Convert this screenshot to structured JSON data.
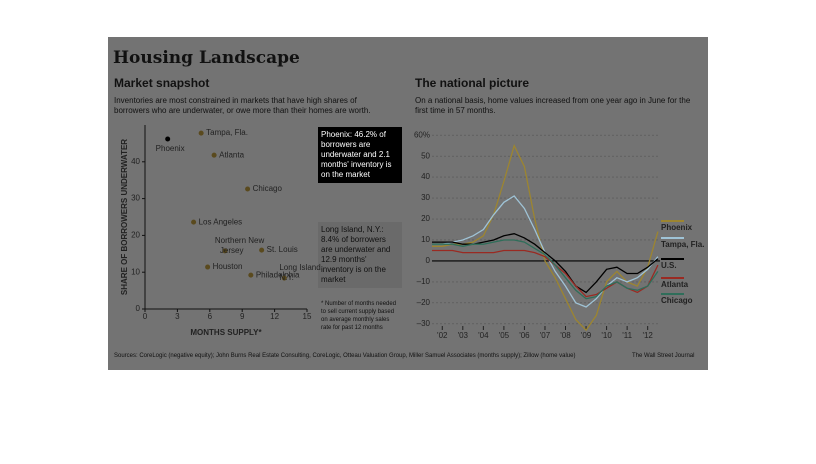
{
  "header": {
    "title": "Housing Landscape",
    "source": "Sources: CoreLogic (negative equity); John Burns Real Estate Consulting, CoreLogic, Otteau Valuation Group, Miller Samuel Associates (months supply); Zillow (home value)",
    "credit": "The Wall Street Journal"
  },
  "chart_data": [
    {
      "type": "scatter",
      "title": "Market snapshot",
      "subtitle": "Inventories are most constrained in markets that have high shares of borrowers who are underwater, or owe more than their homes are worth.",
      "x_label": "MONTHS SUPPLY*",
      "y_label": "SHARE OF BORROWERS UNDERWATER",
      "points": [
        {
          "label": "Phoenix",
          "x": 2.1,
          "y": 46.2
        },
        {
          "label": "Tampa, Fla.",
          "x": 5.2,
          "y": 47.8
        },
        {
          "label": "Atlanta",
          "x": 6.4,
          "y": 41.8
        },
        {
          "label": "Chicago",
          "x": 9.5,
          "y": 32.6
        },
        {
          "label": "Los Angeles",
          "x": 4.5,
          "y": 23.6
        },
        {
          "label": "Northern New Jersey",
          "x": 7.4,
          "y": 15.8
        },
        {
          "label": "St. Louis",
          "x": 10.8,
          "y": 16
        },
        {
          "label": "Houston",
          "x": 5.8,
          "y": 11.4
        },
        {
          "label": "Philadelphia",
          "x": 9.8,
          "y": 9.2
        },
        {
          "label": "Long Island, N.Y.",
          "x": 12.9,
          "y": 8.4
        }
      ],
      "color": "#5a4a1e",
      "highlight_color": "#000000",
      "xlim": [
        0,
        15
      ],
      "xticks": [
        0,
        3,
        6,
        9,
        12,
        15
      ],
      "ylim": [
        0,
        50
      ],
      "yticks": [
        0,
        10,
        20,
        30,
        40
      ],
      "annotations": [
        "Phoenix: 46.2% of borrowers are underwater and 2.1 months' inventory is on the market",
        "Long Island, N.Y.: 8.4% of borrowers are underwater and 12.9 months' inventory is on the market",
        "* Number of months needed to sell current supply based on average monthly sales rate for past 12 months"
      ]
    },
    {
      "type": "line",
      "title": "The national picture",
      "subtitle": "On a national basis, home values increased from one year ago in June for the first time in 57 months.",
      "x": [
        2001.5,
        2002,
        2002.5,
        2003,
        2003.5,
        2004,
        2004.5,
        2005,
        2005.5,
        2006,
        2006.5,
        2007,
        2007.5,
        2008,
        2008.5,
        2009,
        2009.5,
        2010,
        2010.5,
        2011,
        2011.5,
        2012,
        2012.5
      ],
      "series": [
        {
          "name": "Phoenix",
          "color": "#9c8530",
          "values": [
            7,
            7,
            8,
            8,
            9,
            12,
            22,
            38,
            55,
            45,
            20,
            0,
            -8,
            -18,
            -28,
            -33,
            -26,
            -10,
            -5,
            -10,
            -12,
            -3,
            14
          ]
        },
        {
          "name": "Tampa, Fla.",
          "color": "#9fc3d6",
          "values": [
            8,
            8,
            9,
            10,
            12,
            15,
            22,
            28,
            31,
            25,
            15,
            4,
            -5,
            -12,
            -20,
            -22,
            -18,
            -12,
            -8,
            -10,
            -8,
            -4,
            2
          ]
        },
        {
          "name": "U.S.",
          "color": "#000000",
          "values": [
            9,
            9,
            9,
            8,
            8,
            9,
            10,
            12,
            13,
            11,
            8,
            4,
            0,
            -5,
            -12,
            -15,
            -10,
            -4,
            -3,
            -6,
            -6,
            -3,
            1
          ]
        },
        {
          "name": "Atlanta",
          "color": "#9a2a22",
          "values": [
            5,
            5,
            5,
            4,
            4,
            4,
            4,
            5,
            5,
            5,
            4,
            2,
            -2,
            -6,
            -12,
            -17,
            -16,
            -13,
            -10,
            -13,
            -15,
            -12,
            -2
          ]
        },
        {
          "name": "Chicago",
          "color": "#2f6e5a",
          "values": [
            8,
            8,
            8,
            7,
            8,
            8,
            9,
            10,
            10,
            9,
            6,
            3,
            -2,
            -8,
            -14,
            -18,
            -17,
            -12,
            -10,
            -13,
            -14,
            -12,
            -5
          ]
        }
      ],
      "xlim": [
        2001.5,
        2012.6
      ],
      "xticks": [
        {
          "value": 2002,
          "label": "'02"
        },
        {
          "value": 2003,
          "label": "'03"
        },
        {
          "value": 2004,
          "label": "'04"
        },
        {
          "value": 2005,
          "label": "'05"
        },
        {
          "value": 2006,
          "label": "'06"
        },
        {
          "value": 2007,
          "label": "'07"
        },
        {
          "value": 2008,
          "label": "'08"
        },
        {
          "value": 2009,
          "label": "'09"
        },
        {
          "value": 2010,
          "label": "'10"
        },
        {
          "value": 2011,
          "label": "'11"
        },
        {
          "value": 2012,
          "label": "'12"
        }
      ],
      "ylim": [
        -32,
        62
      ],
      "yticks": [
        {
          "value": -30,
          "label": "–30"
        },
        {
          "value": -20,
          "label": "–20"
        },
        {
          "value": -10,
          "label": "–10"
        },
        0,
        10,
        20,
        30,
        40,
        50,
        {
          "value": 60,
          "label": "60%"
        }
      ],
      "grid": true
    }
  ]
}
